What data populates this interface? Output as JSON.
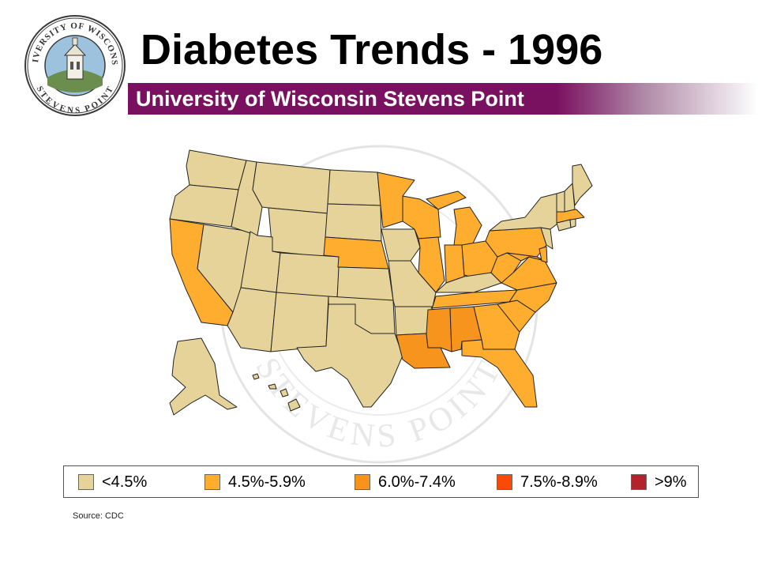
{
  "slide": {
    "title": "Diabetes Trends - 1996",
    "subtitle": "University of Wisconsin Stevens Point",
    "source": "Source: CDC"
  },
  "seal": {
    "top_text": "UNIVERSITY OF WISCONSIN",
    "bottom_text": "STEVENS POINT"
  },
  "colors": {
    "band": "#7a1060",
    "state_border": "#222222"
  },
  "legend": [
    {
      "label": "<4.5%",
      "color": "#e6d39a"
    },
    {
      "label": "4.5%-5.9%",
      "color": "#ffad2f"
    },
    {
      "label": "6.0%-7.4%",
      "color": "#f7941d"
    },
    {
      "label": "7.5%-8.9%",
      "color": "#f94a06"
    },
    {
      "label": ">9%",
      "color": "#b3232c"
    }
  ],
  "map_data": {
    "type": "choropleth",
    "region": "United States",
    "states_by_category": {
      "<4.5%": [
        "WA",
        "OR",
        "ID",
        "MT",
        "WY",
        "NV",
        "UT",
        "CO",
        "AZ",
        "NM",
        "ND",
        "SD",
        "KS",
        "OK",
        "TX",
        "IA",
        "MO",
        "AR",
        "KY",
        "NY",
        "VT",
        "NH",
        "ME",
        "CT",
        "RI",
        "NJ",
        "AK",
        "HI"
      ],
      "4.5%-5.9%": [
        "CA",
        "NE",
        "MN",
        "WI",
        "MI",
        "IL",
        "IN",
        "OH",
        "PA",
        "WV",
        "VA",
        "NC",
        "SC",
        "GA",
        "FL",
        "TN",
        "MD",
        "DE",
        "MA"
      ],
      "6.0%-7.4%": [
        "LA",
        "MS",
        "AL"
      ],
      "7.5%-8.9%": [],
      ">9%": []
    }
  }
}
